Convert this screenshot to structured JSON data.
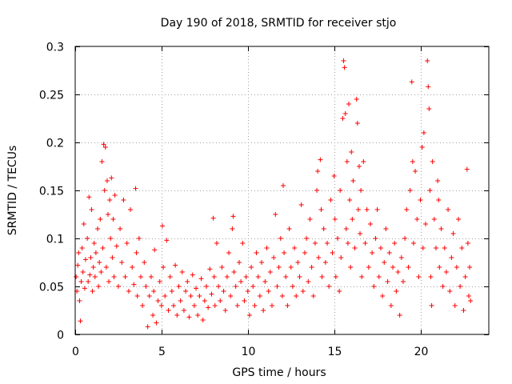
{
  "chart_data": {
    "type": "scatter",
    "title": "Day 190 of 2018, SRMTID for receiver stjo",
    "xlabel": "GPS time / hours",
    "ylabel": "SRMTID / TECUs",
    "xlim": [
      0,
      23.96
    ],
    "ylim": [
      0,
      0.3
    ],
    "xticks": [
      0,
      5,
      10,
      15,
      20
    ],
    "yticks": [
      0,
      0.05,
      0.1,
      0.15,
      0.2,
      0.25,
      0.3
    ],
    "xtick_labels": [
      "0",
      "5",
      "10",
      "15",
      "20"
    ],
    "ytick_labels": [
      "0",
      "0.05",
      "0.1",
      "0.15",
      "0.2",
      "0.25",
      "0.3"
    ],
    "grid": true,
    "marker": "+",
    "series": [
      {
        "name": "SRMTID",
        "color": "#ff0000",
        "points": [
          [
            0.05,
            0.06
          ],
          [
            0.1,
            0.045
          ],
          [
            0.15,
            0.072
          ],
          [
            0.2,
            0.085
          ],
          [
            0.25,
            0.035
          ],
          [
            0.3,
            0.014
          ],
          [
            0.35,
            0.055
          ],
          [
            0.4,
            0.09
          ],
          [
            0.45,
            0.065
          ],
          [
            0.5,
            0.115
          ],
          [
            0.55,
            0.048
          ],
          [
            0.6,
            0.078
          ],
          [
            0.7,
            0.1
          ],
          [
            0.75,
            0.055
          ],
          [
            0.8,
            0.143
          ],
          [
            0.85,
            0.062
          ],
          [
            0.9,
            0.08
          ],
          [
            0.95,
            0.13
          ],
          [
            1.0,
            0.045
          ],
          [
            1.05,
            0.07
          ],
          [
            1.1,
            0.095
          ],
          [
            1.15,
            0.06
          ],
          [
            1.2,
            0.085
          ],
          [
            1.3,
            0.11
          ],
          [
            1.35,
            0.05
          ],
          [
            1.4,
            0.075
          ],
          [
            1.45,
            0.12
          ],
          [
            1.5,
            0.065
          ],
          [
            1.55,
            0.18
          ],
          [
            1.6,
            0.09
          ],
          [
            1.65,
            0.198
          ],
          [
            1.7,
            0.15
          ],
          [
            1.75,
            0.195
          ],
          [
            1.8,
            0.07
          ],
          [
            1.85,
            0.16
          ],
          [
            1.9,
            0.125
          ],
          [
            1.95,
            0.055
          ],
          [
            2.0,
            0.14
          ],
          [
            2.05,
            0.1
          ],
          [
            2.1,
            0.163
          ],
          [
            2.15,
            0.08
          ],
          [
            2.2,
            0.12
          ],
          [
            2.25,
            0.06
          ],
          [
            2.3,
            0.145
          ],
          [
            2.4,
            0.092
          ],
          [
            2.5,
            0.05
          ],
          [
            2.6,
            0.11
          ],
          [
            2.7,
            0.075
          ],
          [
            2.8,
            0.14
          ],
          [
            2.9,
            0.06
          ],
          [
            3.0,
            0.095
          ],
          [
            3.1,
            0.045
          ],
          [
            3.2,
            0.13
          ],
          [
            3.3,
            0.07
          ],
          [
            3.4,
            0.052
          ],
          [
            3.5,
            0.152
          ],
          [
            3.55,
            0.085
          ],
          [
            3.6,
            0.04
          ],
          [
            3.7,
            0.1
          ],
          [
            3.8,
            0.06
          ],
          [
            3.9,
            0.03
          ],
          [
            4.0,
            0.075
          ],
          [
            4.1,
            0.05
          ],
          [
            4.2,
            0.008
          ],
          [
            4.3,
            0.04
          ],
          [
            4.4,
            0.06
          ],
          [
            4.5,
            0.02
          ],
          [
            4.55,
            0.045
          ],
          [
            4.6,
            0.088
          ],
          [
            4.7,
            0.012
          ],
          [
            4.8,
            0.035
          ],
          [
            4.9,
            0.055
          ],
          [
            5.0,
            0.03
          ],
          [
            5.05,
            0.113
          ],
          [
            5.1,
            0.07
          ],
          [
            5.2,
            0.04
          ],
          [
            5.3,
            0.098
          ],
          [
            5.4,
            0.025
          ],
          [
            5.5,
            0.06
          ],
          [
            5.6,
            0.045
          ],
          [
            5.7,
            0.03
          ],
          [
            5.8,
            0.072
          ],
          [
            5.9,
            0.02
          ],
          [
            6.0,
            0.05
          ],
          [
            6.1,
            0.035
          ],
          [
            6.2,
            0.065
          ],
          [
            6.3,
            0.025
          ],
          [
            6.4,
            0.045
          ],
          [
            6.5,
            0.055
          ],
          [
            6.6,
            0.018
          ],
          [
            6.7,
            0.04
          ],
          [
            6.8,
            0.062
          ],
          [
            6.9,
            0.03
          ],
          [
            7.0,
            0.048
          ],
          [
            7.1,
            0.02
          ],
          [
            7.2,
            0.04
          ],
          [
            7.3,
            0.058
          ],
          [
            7.4,
            0.015
          ],
          [
            7.5,
            0.035
          ],
          [
            7.6,
            0.05
          ],
          [
            7.7,
            0.028
          ],
          [
            7.8,
            0.068
          ],
          [
            7.9,
            0.042
          ],
          [
            8.0,
            0.121
          ],
          [
            8.05,
            0.06
          ],
          [
            8.1,
            0.03
          ],
          [
            8.2,
            0.095
          ],
          [
            8.3,
            0.05
          ],
          [
            8.4,
            0.035
          ],
          [
            8.5,
            0.07
          ],
          [
            8.6,
            0.045
          ],
          [
            8.7,
            0.025
          ],
          [
            8.8,
            0.06
          ],
          [
            8.9,
            0.085
          ],
          [
            9.0,
            0.04
          ],
          [
            9.1,
            0.11
          ],
          [
            9.15,
            0.123
          ],
          [
            9.2,
            0.065
          ],
          [
            9.3,
            0.05
          ],
          [
            9.4,
            0.03
          ],
          [
            9.5,
            0.075
          ],
          [
            9.6,
            0.055
          ],
          [
            9.7,
            0.095
          ],
          [
            9.8,
            0.035
          ],
          [
            9.9,
            0.06
          ],
          [
            10.0,
            0.045
          ],
          [
            10.1,
            0.02
          ],
          [
            10.2,
            0.07
          ],
          [
            10.3,
            0.05
          ],
          [
            10.4,
            0.03
          ],
          [
            10.5,
            0.085
          ],
          [
            10.6,
            0.06
          ],
          [
            10.7,
            0.04
          ],
          [
            10.8,
            0.075
          ],
          [
            10.9,
            0.025
          ],
          [
            11.0,
            0.055
          ],
          [
            11.1,
            0.09
          ],
          [
            11.2,
            0.045
          ],
          [
            11.3,
            0.065
          ],
          [
            11.4,
            0.03
          ],
          [
            11.5,
            0.08
          ],
          [
            11.6,
            0.125
          ],
          [
            11.7,
            0.05
          ],
          [
            11.8,
            0.07
          ],
          [
            11.9,
            0.1
          ],
          [
            12.0,
            0.04
          ],
          [
            12.05,
            0.155
          ],
          [
            12.1,
            0.085
          ],
          [
            12.2,
            0.06
          ],
          [
            12.3,
            0.03
          ],
          [
            12.4,
            0.11
          ],
          [
            12.5,
            0.07
          ],
          [
            12.6,
            0.05
          ],
          [
            12.7,
            0.09
          ],
          [
            12.8,
            0.04
          ],
          [
            12.9,
            0.075
          ],
          [
            13.0,
            0.06
          ],
          [
            13.1,
            0.135
          ],
          [
            13.2,
            0.045
          ],
          [
            13.3,
            0.085
          ],
          [
            13.4,
            0.1
          ],
          [
            13.5,
            0.055
          ],
          [
            13.6,
            0.12
          ],
          [
            13.7,
            0.07
          ],
          [
            13.8,
            0.04
          ],
          [
            13.9,
            0.095
          ],
          [
            14.0,
            0.15
          ],
          [
            14.05,
            0.17
          ],
          [
            14.1,
            0.08
          ],
          [
            14.2,
            0.182
          ],
          [
            14.25,
            0.13
          ],
          [
            14.3,
            0.06
          ],
          [
            14.4,
            0.11
          ],
          [
            14.5,
            0.075
          ],
          [
            14.6,
            0.095
          ],
          [
            14.7,
            0.05
          ],
          [
            14.8,
            0.14
          ],
          [
            14.9,
            0.085
          ],
          [
            15.0,
            0.165
          ],
          [
            15.05,
            0.12
          ],
          [
            15.1,
            0.06
          ],
          [
            15.2,
            0.1
          ],
          [
            15.3,
            0.045
          ],
          [
            15.35,
            0.15
          ],
          [
            15.4,
            0.08
          ],
          [
            15.5,
            0.225
          ],
          [
            15.55,
            0.285
          ],
          [
            15.6,
            0.278
          ],
          [
            15.65,
            0.23
          ],
          [
            15.7,
            0.11
          ],
          [
            15.75,
            0.18
          ],
          [
            15.8,
            0.095
          ],
          [
            15.85,
            0.24
          ],
          [
            15.9,
            0.14
          ],
          [
            15.95,
            0.07
          ],
          [
            16.0,
            0.19
          ],
          [
            16.05,
            0.12
          ],
          [
            16.1,
            0.16
          ],
          [
            16.2,
            0.09
          ],
          [
            16.3,
            0.245
          ],
          [
            16.35,
            0.22
          ],
          [
            16.4,
            0.13
          ],
          [
            16.45,
            0.175
          ],
          [
            16.5,
            0.105
          ],
          [
            16.55,
            0.15
          ],
          [
            16.6,
            0.06
          ],
          [
            16.7,
            0.18
          ],
          [
            16.8,
            0.095
          ],
          [
            16.9,
            0.13
          ],
          [
            17.0,
            0.07
          ],
          [
            17.1,
            0.115
          ],
          [
            17.2,
            0.085
          ],
          [
            17.3,
            0.05
          ],
          [
            17.4,
            0.1
          ],
          [
            17.5,
            0.13
          ],
          [
            17.6,
            0.06
          ],
          [
            17.7,
            0.09
          ],
          [
            17.8,
            0.04
          ],
          [
            17.9,
            0.075
          ],
          [
            18.0,
            0.11
          ],
          [
            18.1,
            0.055
          ],
          [
            18.2,
            0.085
          ],
          [
            18.3,
            0.03
          ],
          [
            18.4,
            0.07
          ],
          [
            18.5,
            0.095
          ],
          [
            18.6,
            0.045
          ],
          [
            18.7,
            0.065
          ],
          [
            18.8,
            0.02
          ],
          [
            18.9,
            0.08
          ],
          [
            19.0,
            0.055
          ],
          [
            19.1,
            0.1
          ],
          [
            19.2,
            0.13
          ],
          [
            19.3,
            0.07
          ],
          [
            19.4,
            0.15
          ],
          [
            19.5,
            0.263
          ],
          [
            19.55,
            0.18
          ],
          [
            19.6,
            0.095
          ],
          [
            19.7,
            0.17
          ],
          [
            19.8,
            0.12
          ],
          [
            19.9,
            0.06
          ],
          [
            20.0,
            0.14
          ],
          [
            20.1,
            0.195
          ],
          [
            20.15,
            0.09
          ],
          [
            20.2,
            0.21
          ],
          [
            20.3,
            0.115
          ],
          [
            20.4,
            0.285
          ],
          [
            20.45,
            0.258
          ],
          [
            20.5,
            0.235
          ],
          [
            20.55,
            0.15
          ],
          [
            20.6,
            0.06
          ],
          [
            20.65,
            0.03
          ],
          [
            20.7,
            0.18
          ],
          [
            20.8,
            0.12
          ],
          [
            20.9,
            0.09
          ],
          [
            21.0,
            0.16
          ],
          [
            21.05,
            0.14
          ],
          [
            21.1,
            0.07
          ],
          [
            21.2,
            0.11
          ],
          [
            21.3,
            0.05
          ],
          [
            21.4,
            0.09
          ],
          [
            21.5,
            0.065
          ],
          [
            21.6,
            0.13
          ],
          [
            21.7,
            0.045
          ],
          [
            21.8,
            0.08
          ],
          [
            21.9,
            0.105
          ],
          [
            22.0,
            0.03
          ],
          [
            22.1,
            0.07
          ],
          [
            22.2,
            0.12
          ],
          [
            22.3,
            0.05
          ],
          [
            22.4,
            0.09
          ],
          [
            22.5,
            0.025
          ],
          [
            22.6,
            0.06
          ],
          [
            22.7,
            0.172
          ],
          [
            22.75,
            0.095
          ],
          [
            22.8,
            0.04
          ],
          [
            22.85,
            0.07
          ],
          [
            22.9,
            0.035
          ]
        ]
      }
    ]
  }
}
